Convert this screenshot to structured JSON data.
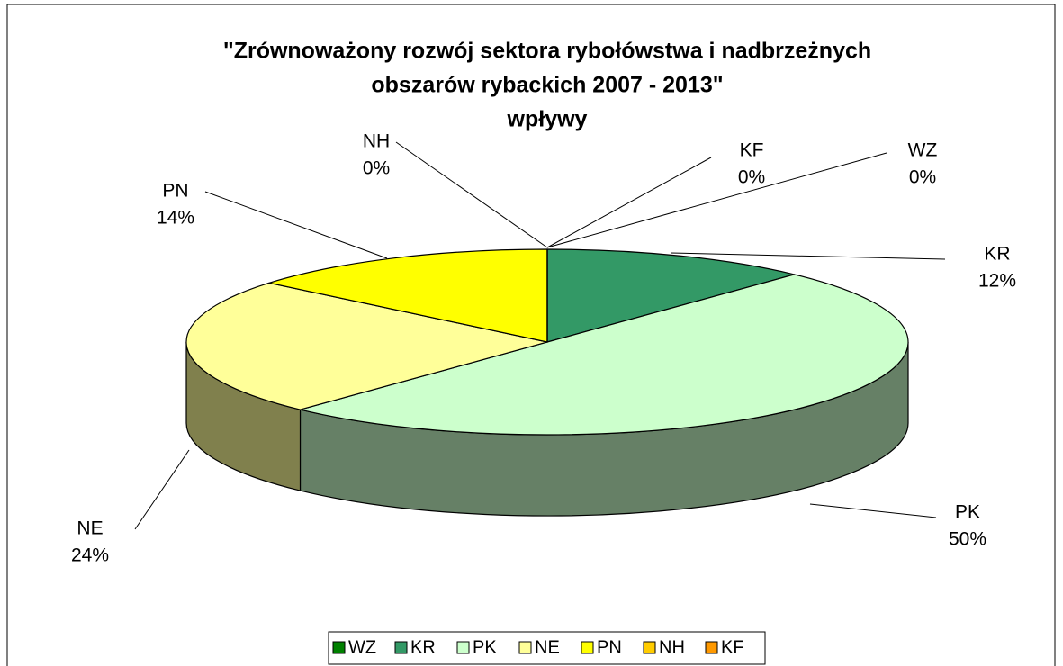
{
  "chart_data": {
    "type": "pie3d",
    "title": [
      "\"Zrównoważony rozwój sektora rybołówstwa i nadbrzeżnych",
      "obszarów rybackich 2007 - 2013\""
    ],
    "subtitle": "wpływy",
    "categories": [
      "WZ",
      "KR",
      "PK",
      "NE",
      "PN",
      "NH",
      "KF"
    ],
    "values": [
      0,
      12,
      50,
      24,
      14,
      0,
      0
    ],
    "value_labels": [
      "0%",
      "12%",
      "50%",
      "24%",
      "14%",
      "0%",
      "0%"
    ],
    "colors": [
      "#008000",
      "#339966",
      "#CCFFCC",
      "#FFFF99",
      "#FFFF00",
      "#FFCC00",
      "#FF9900"
    ],
    "legend": "bottom"
  }
}
